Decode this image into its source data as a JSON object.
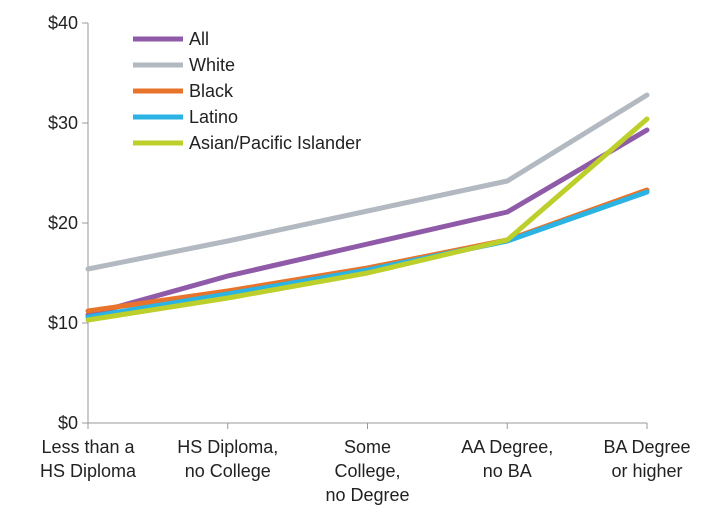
{
  "chart_data": {
    "type": "line",
    "title": "",
    "xlabel": "",
    "ylabel": "",
    "ylim": [
      0,
      40
    ],
    "yticks": [
      0,
      10,
      20,
      30,
      40
    ],
    "ytick_labels": [
      "$0",
      "$10",
      "$20",
      "$30",
      "$40"
    ],
    "categories": [
      [
        "Less than a",
        "HS Diploma"
      ],
      [
        "HS Diploma,",
        "no College"
      ],
      [
        "Some",
        "College,",
        "no Degree"
      ],
      [
        "AA Degree,",
        "no BA"
      ],
      [
        "BA Degree",
        "or higher"
      ]
    ],
    "grid": false,
    "legend_position": "top-left",
    "series": [
      {
        "name": "All",
        "color": "#8f5aa8",
        "values": [
          10.8,
          14.7,
          17.9,
          21.1,
          29.3
        ]
      },
      {
        "name": "White",
        "color": "#b2b9c0",
        "values": [
          15.4,
          18.2,
          21.2,
          24.2,
          32.8
        ]
      },
      {
        "name": "Black",
        "color": "#e8732a",
        "values": [
          11.2,
          13.2,
          15.5,
          18.3,
          23.3
        ]
      },
      {
        "name": "Latino",
        "color": "#2ab3e3",
        "values": [
          10.6,
          12.9,
          15.3,
          18.2,
          23.1
        ]
      },
      {
        "name": "Asian/Pacific Islander",
        "color": "#bccf2a",
        "values": [
          10.3,
          12.5,
          15.0,
          18.3,
          30.4
        ]
      }
    ]
  }
}
